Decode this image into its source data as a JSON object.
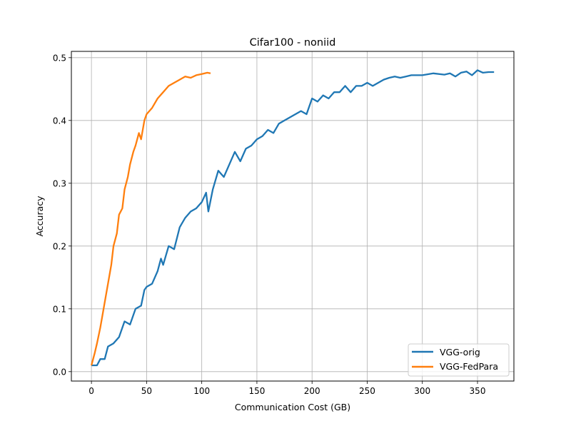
{
  "chart_data": {
    "type": "line",
    "title": "Cifar100 - noniid",
    "xlabel": "Communication Cost (GB)",
    "ylabel": "Accuracy",
    "xlim": [
      -18.2,
      383
    ],
    "ylim": [
      -0.015,
      0.51
    ],
    "xticks": [
      0,
      50,
      100,
      150,
      200,
      250,
      300,
      350
    ],
    "yticks": [
      0.0,
      0.1,
      0.2,
      0.3,
      0.4,
      0.5
    ],
    "xtick_labels": [
      "0",
      "50",
      "100",
      "150",
      "200",
      "250",
      "300",
      "350"
    ],
    "ytick_labels": [
      "0.0",
      "0.1",
      "0.2",
      "0.3",
      "0.4",
      "0.5"
    ],
    "grid": true,
    "legend_position": "lower-right",
    "series": [
      {
        "name": "VGG-orig",
        "color": "#1f77b4",
        "x": [
          0,
          5,
          8,
          12,
          15,
          20,
          25,
          28,
          30,
          35,
          40,
          45,
          48,
          50,
          55,
          60,
          63,
          65,
          70,
          75,
          80,
          85,
          90,
          95,
          100,
          104,
          106,
          110,
          115,
          120,
          125,
          130,
          135,
          140,
          145,
          150,
          155,
          160,
          165,
          170,
          175,
          180,
          185,
          190,
          195,
          200,
          205,
          210,
          215,
          220,
          225,
          230,
          235,
          240,
          245,
          250,
          255,
          260,
          265,
          270,
          275,
          280,
          285,
          290,
          300,
          310,
          320,
          325,
          330,
          335,
          340,
          345,
          350,
          355,
          360,
          365
        ],
        "y": [
          0.01,
          0.01,
          0.02,
          0.02,
          0.04,
          0.045,
          0.055,
          0.07,
          0.08,
          0.075,
          0.1,
          0.105,
          0.13,
          0.135,
          0.14,
          0.16,
          0.18,
          0.17,
          0.2,
          0.195,
          0.23,
          0.245,
          0.255,
          0.26,
          0.27,
          0.285,
          0.255,
          0.29,
          0.32,
          0.31,
          0.33,
          0.35,
          0.335,
          0.355,
          0.36,
          0.37,
          0.375,
          0.385,
          0.38,
          0.395,
          0.4,
          0.405,
          0.41,
          0.415,
          0.41,
          0.435,
          0.43,
          0.44,
          0.435,
          0.445,
          0.445,
          0.455,
          0.445,
          0.455,
          0.455,
          0.46,
          0.455,
          0.46,
          0.465,
          0.468,
          0.47,
          0.468,
          0.47,
          0.472,
          0.472,
          0.475,
          0.473,
          0.475,
          0.47,
          0.476,
          0.478,
          0.472,
          0.48,
          0.476,
          0.477,
          0.477
        ]
      },
      {
        "name": "VGG-FedPara",
        "color": "#ff7f0e",
        "x": [
          0,
          3,
          5,
          8,
          10,
          13,
          15,
          18,
          20,
          23,
          25,
          28,
          30,
          33,
          35,
          38,
          40,
          43,
          45,
          48,
          50,
          55,
          60,
          65,
          70,
          75,
          80,
          85,
          90,
          95,
          100,
          105,
          108
        ],
        "y": [
          0.01,
          0.03,
          0.045,
          0.07,
          0.09,
          0.12,
          0.14,
          0.17,
          0.2,
          0.22,
          0.25,
          0.26,
          0.29,
          0.31,
          0.33,
          0.35,
          0.36,
          0.38,
          0.37,
          0.4,
          0.41,
          0.42,
          0.435,
          0.445,
          0.455,
          0.46,
          0.465,
          0.47,
          0.468,
          0.472,
          0.474,
          0.476,
          0.475
        ]
      }
    ]
  }
}
